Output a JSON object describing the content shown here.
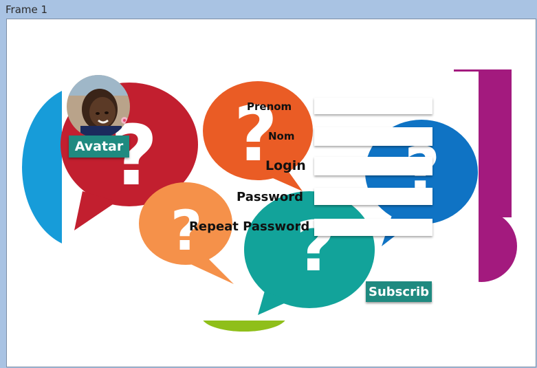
{
  "window": {
    "title": "Frame 1"
  },
  "avatar": {
    "label": "Avatar"
  },
  "form": {
    "prenom_label": "Prenom",
    "nom_label": "Nom",
    "login_label": "Login",
    "password_label": "Password",
    "repeat_password_label": "Repeat Password",
    "prenom_value": "",
    "nom_value": "",
    "login_value": "",
    "password_value": "",
    "repeat_password_value": "",
    "submit_label": "Subscrib"
  },
  "colors": {
    "frame_bg": "#a9c3e3",
    "button_bg": "#1f8a80"
  }
}
